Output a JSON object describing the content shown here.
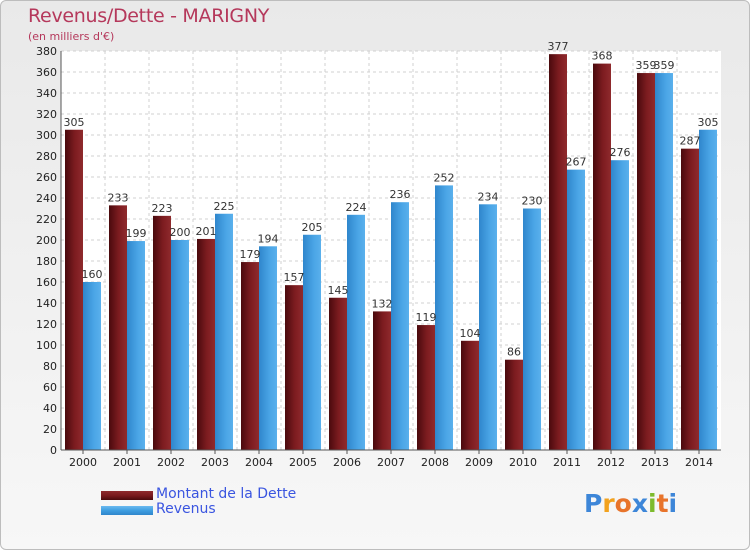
{
  "title": "Revenus/Dette - MARIGNY",
  "subtitle": "(en milliers d'€)",
  "colors": {
    "dette": "#7a1a1d",
    "revenus": "#3e9ee0",
    "title": "#b5385b",
    "legend_text": "#3a55e0"
  },
  "logo": {
    "letters": [
      "P",
      "r",
      "o",
      "x",
      "i",
      "t",
      "i"
    ],
    "colors": [
      "#3d86d8",
      "#f2a21e",
      "#e8742b",
      "#3d86d8",
      "#7dbb2d",
      "#e8742b",
      "#3d86d8"
    ]
  },
  "chart_data": {
    "type": "bar",
    "title": "Revenus/Dette - MARIGNY",
    "ylabel": "(en milliers d'€)",
    "xlabel": "",
    "ylim": [
      0,
      380
    ],
    "yticks": [
      0,
      20,
      40,
      60,
      80,
      100,
      120,
      140,
      160,
      180,
      200,
      220,
      240,
      260,
      280,
      300,
      320,
      340,
      360,
      380
    ],
    "grid": true,
    "legend_position": "bottom-left",
    "categories": [
      "2000",
      "2001",
      "2002",
      "2003",
      "2004",
      "2005",
      "2006",
      "2007",
      "2008",
      "2009",
      "2010",
      "2011",
      "2012",
      "2013",
      "2014"
    ],
    "series": [
      {
        "name": "Montant de la Dette",
        "values": [
          305,
          233,
          223,
          201,
          179,
          157,
          145,
          132,
          119,
          104,
          86,
          377,
          368,
          359,
          287
        ]
      },
      {
        "name": "Revenus",
        "values": [
          160,
          199,
          200,
          225,
          194,
          205,
          224,
          236,
          252,
          234,
          230,
          267,
          276,
          359,
          305
        ]
      }
    ]
  }
}
